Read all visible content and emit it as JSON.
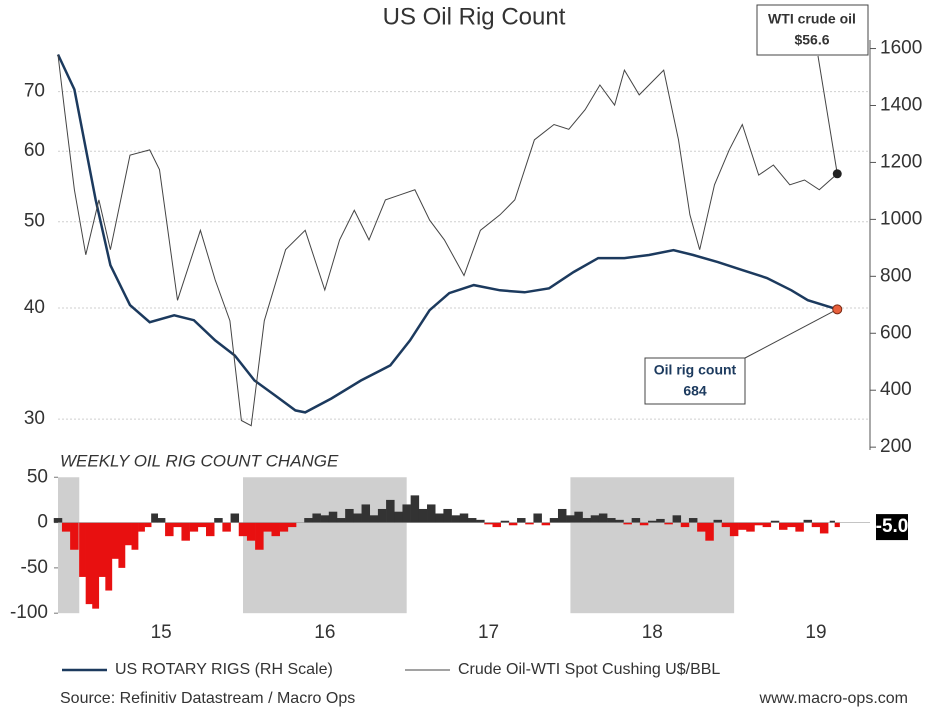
{
  "chart_data": [
    {
      "type": "line",
      "title": "US Oil Rig Count",
      "ylog": true,
      "grid": true,
      "xlim": [
        2014.87,
        2019.83
      ],
      "ylim": [
        27.7,
        80
      ],
      "yticks": [
        30,
        40,
        50,
        60,
        70
      ],
      "y2lim": [
        190,
        1630
      ],
      "y2ticks": [
        200,
        400,
        600,
        800,
        1000,
        1200,
        1400,
        1600
      ],
      "series": [
        {
          "name": "US ROTARY RIGS (RH Scale)",
          "color": "#1c3a5e",
          "axis": "y2",
          "x": [
            2014.87,
            2014.97,
            2015.1,
            2015.19,
            2015.31,
            2015.43,
            2015.58,
            2015.7,
            2015.83,
            2015.95,
            2016.07,
            2016.2,
            2016.32,
            2016.38,
            2016.54,
            2016.72,
            2016.9,
            2017.02,
            2017.14,
            2017.26,
            2017.41,
            2017.57,
            2017.72,
            2017.87,
            2018.02,
            2018.17,
            2018.33,
            2018.48,
            2018.63,
            2018.75,
            2018.9,
            2019.05,
            2019.2,
            2019.35,
            2019.45,
            2019.63
          ],
          "values": [
            1579,
            1456,
            1068,
            839,
            699,
            639,
            663,
            646,
            575,
            522,
            434,
            380,
            329,
            322,
            371,
            434,
            487,
            575,
            681,
            741,
            769,
            751,
            744,
            758,
            815,
            864,
            864,
            875,
            892,
            875,
            850,
            822,
            794,
            751,
            716,
            684
          ]
        },
        {
          "name": "Crude Oil-WTI Spot Cushing U$/BBL",
          "color": "#444444",
          "x": [
            2014.87,
            2014.91,
            2014.97,
            2015.04,
            2015.12,
            2015.19,
            2015.31,
            2015.43,
            2015.49,
            2015.6,
            2015.74,
            2015.83,
            2015.92,
            2015.99,
            2016.05,
            2016.13,
            2016.26,
            2016.38,
            2016.5,
            2016.59,
            2016.68,
            2016.77,
            2016.87,
            2016.96,
            2017.05,
            2017.14,
            2017.23,
            2017.35,
            2017.45,
            2017.57,
            2017.66,
            2017.78,
            2017.9,
            2017.99,
            2018.09,
            2018.18,
            2018.27,
            2018.33,
            2018.42,
            2018.57,
            2018.66,
            2018.73,
            2018.79,
            2018.88,
            2018.97,
            2019.05,
            2019.15,
            2019.24,
            2019.34,
            2019.43,
            2019.52,
            2019.63
          ],
          "values": [
            77,
            66.8,
            54.3,
            45.9,
            52.9,
            46.5,
            59.4,
            60.2,
            57.2,
            40.8,
            48.9,
            43,
            38.7,
            29.9,
            29.5,
            38.7,
            46.5,
            48.9,
            41.9,
            47.7,
            51.5,
            47.7,
            52.9,
            53.6,
            54.3,
            50.2,
            47.7,
            43.5,
            48.9,
            50.9,
            52.9,
            61.8,
            64.3,
            63.5,
            66.8,
            71.2,
            67.6,
            74,
            69.4,
            74,
            61.8,
            50.9,
            46.5,
            55,
            60.2,
            64.3,
            56.4,
            57.9,
            55,
            55.7,
            54.3,
            56.6
          ]
        }
      ],
      "annotations": [
        {
          "text": "WTI crude oil",
          "label": "$56.6",
          "value": 56.6,
          "x": 2019.63
        },
        {
          "text": "Oil rig count",
          "value": 684,
          "x": 2019.63,
          "axis": "y2"
        }
      ]
    },
    {
      "type": "bar",
      "subtitle": "WEEKLY OIL RIG COUNT CHANGE",
      "xlim": [
        2014.87,
        2019.83
      ],
      "xticks": [
        {
          "value": 2015.5,
          "label": "15"
        },
        {
          "value": 2016.5,
          "label": "16"
        },
        {
          "value": 2017.5,
          "label": "17"
        },
        {
          "value": 2018.5,
          "label": "18"
        },
        {
          "value": 2019.5,
          "label": "19"
        }
      ],
      "ylim": [
        -102,
        58
      ],
      "yticks": [
        50,
        0,
        -50,
        -100
      ],
      "positive_color": "#333333",
      "negative_color": "#e81010",
      "shaded": [
        [
          2014.87,
          2015.0
        ],
        [
          2016.0,
          2017.0
        ],
        [
          2018.0,
          2019.0
        ]
      ],
      "x": [
        2014.87,
        2014.92,
        2014.97,
        2015.02,
        2015.06,
        2015.1,
        2015.14,
        2015.18,
        2015.22,
        2015.26,
        2015.3,
        2015.34,
        2015.38,
        2015.42,
        2015.46,
        2015.5,
        2015.55,
        2015.6,
        2015.65,
        2015.7,
        2015.75,
        2015.8,
        2015.85,
        2015.9,
        2015.95,
        2016.0,
        2016.05,
        2016.1,
        2016.15,
        2016.2,
        2016.25,
        2016.3,
        2016.35,
        2016.4,
        2016.45,
        2016.5,
        2016.55,
        2016.6,
        2016.65,
        2016.7,
        2016.75,
        2016.8,
        2016.85,
        2016.9,
        2016.95,
        2017.0,
        2017.05,
        2017.1,
        2017.15,
        2017.2,
        2017.25,
        2017.3,
        2017.35,
        2017.4,
        2017.45,
        2017.5,
        2017.55,
        2017.6,
        2017.65,
        2017.7,
        2017.75,
        2017.8,
        2017.85,
        2017.9,
        2017.95,
        2018.0,
        2018.05,
        2018.1,
        2018.15,
        2018.2,
        2018.25,
        2018.3,
        2018.35,
        2018.4,
        2018.45,
        2018.5,
        2018.55,
        2018.6,
        2018.65,
        2018.7,
        2018.75,
        2018.8,
        2018.85,
        2018.9,
        2018.95,
        2019.0,
        2019.05,
        2019.1,
        2019.15,
        2019.2,
        2019.25,
        2019.3,
        2019.35,
        2019.4,
        2019.45,
        2019.5,
        2019.55,
        2019.6,
        2019.63
      ],
      "values": [
        5,
        -10,
        -30,
        -60,
        -90,
        -95,
        -60,
        -75,
        -40,
        -50,
        -25,
        -30,
        -10,
        -5,
        10,
        5,
        -15,
        -5,
        -20,
        -10,
        -5,
        -15,
        5,
        -10,
        10,
        -15,
        -20,
        -30,
        -10,
        -15,
        -10,
        -5,
        0,
        5,
        10,
        8,
        12,
        5,
        15,
        10,
        20,
        8,
        15,
        25,
        12,
        20,
        30,
        15,
        20,
        10,
        15,
        8,
        10,
        5,
        3,
        -2,
        -5,
        2,
        -3,
        5,
        -2,
        10,
        -3,
        5,
        15,
        8,
        12,
        5,
        8,
        10,
        5,
        3,
        -2,
        5,
        -3,
        2,
        4,
        -2,
        8,
        -5,
        5,
        -10,
        -20,
        3,
        -5,
        -15,
        -8,
        -10,
        -3,
        -5,
        2,
        -8,
        -5,
        -10,
        3,
        -5,
        -12,
        2,
        -5
      ],
      "latest": {
        "value": -5,
        "label": "-5.0"
      }
    }
  ],
  "source": "Source: Refinitiv Datastream / Macro Ops",
  "website": "www.macro-ops.com"
}
